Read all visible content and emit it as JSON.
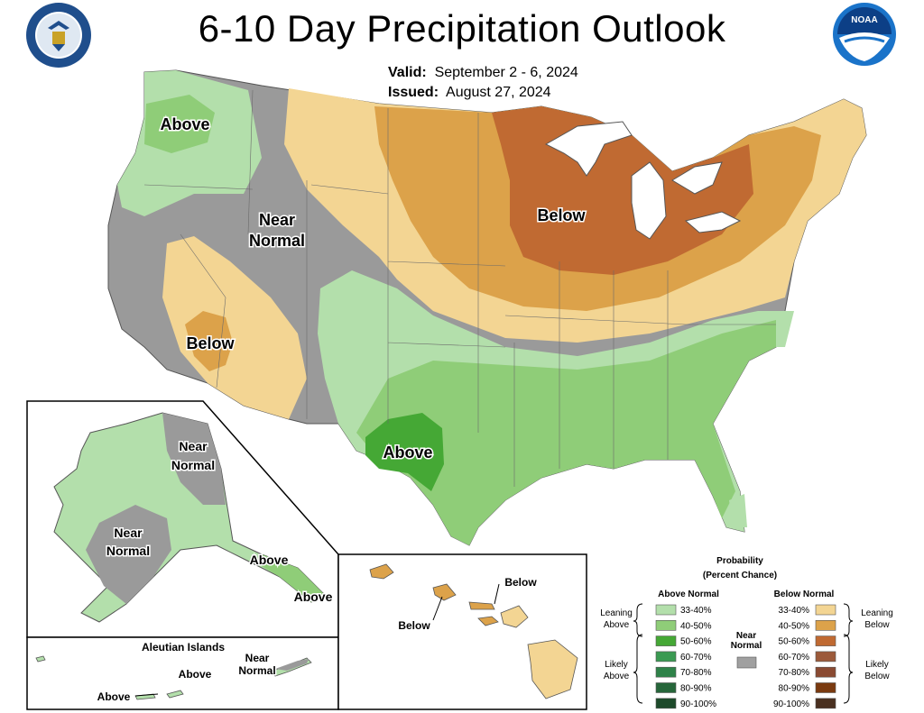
{
  "title": "6-10 Day Precipitation Outlook",
  "valid_label": "Valid:",
  "valid_value": "September 2 - 6, 2024",
  "issued_label": "Issued:",
  "issued_value": "August 27, 2024",
  "logo_noaa_text": "NOAA",
  "map_labels": {
    "nw_above": "Above",
    "near_normal_1": "Near",
    "near_normal_2": "Normal",
    "sw_below": "Below",
    "ne_below": "Below",
    "tx_above": "Above",
    "ak_near_1a": "Near",
    "ak_near_1b": "Normal",
    "ak_near_2a": "Near",
    "ak_near_2b": "Normal",
    "ak_above_1": "Above",
    "ak_above_2": "Above",
    "aleutian_title": "Aleutian Islands",
    "aleutian_above_1": "Above",
    "aleutian_above_2": "Above",
    "aleutian_near_a": "Near",
    "aleutian_near_b": "Normal",
    "hi_below_1": "Below",
    "hi_below_2": "Below"
  },
  "legend": {
    "title_1": "Probability",
    "title_2": "(Percent Chance)",
    "above_header": "Above Normal",
    "below_header": "Below Normal",
    "leaning_above_1": "Leaning",
    "leaning_above_2": "Above",
    "likely_above_1": "Likely",
    "likely_above_2": "Above",
    "leaning_below_1": "Leaning",
    "leaning_below_2": "Below",
    "likely_below_1": "Likely",
    "likely_below_2": "Below",
    "near_normal_1": "Near",
    "near_normal_2": "Normal",
    "near_normal_color": "#a0a0a0",
    "above": [
      {
        "label": "33-40%",
        "color": "#b3dfab"
      },
      {
        "label": "40-50%",
        "color": "#8fcd78"
      },
      {
        "label": "50-60%",
        "color": "#45a835"
      },
      {
        "label": "60-70%",
        "color": "#3a9a52"
      },
      {
        "label": "70-80%",
        "color": "#2e8248"
      },
      {
        "label": "80-90%",
        "color": "#26663a"
      },
      {
        "label": "90-100%",
        "color": "#1d4a2a"
      }
    ],
    "below": [
      {
        "label": "33-40%",
        "color": "#f3d593"
      },
      {
        "label": "40-50%",
        "color": "#dca24a"
      },
      {
        "label": "50-60%",
        "color": "#c06a32"
      },
      {
        "label": "60-70%",
        "color": "#9c5a3a"
      },
      {
        "label": "70-80%",
        "color": "#8a4a32"
      },
      {
        "label": "80-90%",
        "color": "#7a3a10"
      },
      {
        "label": "90-100%",
        "color": "#4a3020"
      }
    ]
  },
  "colors": {
    "near_normal": "#9a9a9a",
    "above_1": "#b3dfab",
    "above_2": "#8fcd78",
    "above_3": "#45a835",
    "below_1": "#f3d593",
    "below_2": "#dca24a",
    "below_3": "#c06a32"
  }
}
